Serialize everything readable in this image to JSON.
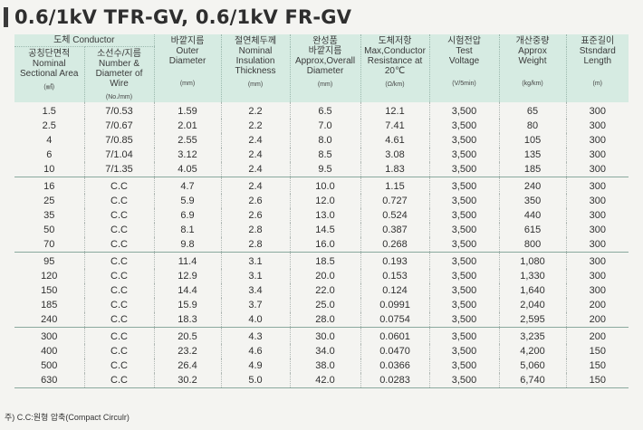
{
  "title": "0.6/1kV TFR-GV, 0.6/1kV FR-GV",
  "header": {
    "conductor_group": "도체 Conductor",
    "col1": {
      "lines": [
        "공칭단면적",
        "Nominal",
        "Sectional Area"
      ],
      "unit": "(㎟)"
    },
    "col2": {
      "lines": [
        "소선수/지름",
        "Number &",
        "Diameter of Wire"
      ],
      "unit": "(No./mm)"
    },
    "col3": {
      "lines": [
        "바깥지름",
        "Outer",
        "Diameter"
      ],
      "unit": "(mm)"
    },
    "col4": {
      "lines": [
        "절연체두께",
        "Nominal",
        "Insulation",
        "Thickness"
      ],
      "unit": "(mm)"
    },
    "col5": {
      "lines": [
        "완성품",
        "바깥지름",
        "Approx,Overall",
        "Diameter"
      ],
      "unit": "(mm)"
    },
    "col6": {
      "lines": [
        "도체저항",
        "Max,Conductor",
        "Resistance at",
        "20℃"
      ],
      "unit": "(Ω/km)"
    },
    "col7": {
      "lines": [
        "시험전압",
        "Test",
        "Voltage"
      ],
      "unit": "(V/5min)"
    },
    "col8": {
      "lines": [
        "개산중량",
        "Approx",
        "Weight"
      ],
      "unit": "(kg/km)"
    },
    "col9": {
      "lines": [
        "표준길이",
        "Stsndard",
        "Length"
      ],
      "unit": "(m)"
    }
  },
  "rows": [
    [
      "1.5",
      "7/0.53",
      "1.59",
      "2.2",
      "6.5",
      "12.1",
      "3,500",
      "65",
      "300"
    ],
    [
      "2.5",
      "7/0.67",
      "2.01",
      "2.2",
      "7.0",
      "7.41",
      "3,500",
      "80",
      "300"
    ],
    [
      "4",
      "7/0.85",
      "2.55",
      "2.4",
      "8.0",
      "4.61",
      "3,500",
      "105",
      "300"
    ],
    [
      "6",
      "7/1.04",
      "3.12",
      "2.4",
      "8.5",
      "3.08",
      "3,500",
      "135",
      "300"
    ],
    [
      "10",
      "7/1.35",
      "4.05",
      "2.4",
      "9.5",
      "1.83",
      "3,500",
      "185",
      "300"
    ],
    [
      "16",
      "C.C",
      "4.7",
      "2.4",
      "10.0",
      "1.15",
      "3,500",
      "240",
      "300"
    ],
    [
      "25",
      "C.C",
      "5.9",
      "2.6",
      "12.0",
      "0.727",
      "3,500",
      "350",
      "300"
    ],
    [
      "35",
      "C.C",
      "6.9",
      "2.6",
      "13.0",
      "0.524",
      "3,500",
      "440",
      "300"
    ],
    [
      "50",
      "C.C",
      "8.1",
      "2.8",
      "14.5",
      "0.387",
      "3,500",
      "615",
      "300"
    ],
    [
      "70",
      "C.C",
      "9.8",
      "2.8",
      "16.0",
      "0.268",
      "3,500",
      "800",
      "300"
    ],
    [
      "95",
      "C.C",
      "11.4",
      "3.1",
      "18.5",
      "0.193",
      "3,500",
      "1,080",
      "300"
    ],
    [
      "120",
      "C.C",
      "12.9",
      "3.1",
      "20.0",
      "0.153",
      "3,500",
      "1,330",
      "300"
    ],
    [
      "150",
      "C.C",
      "14.4",
      "3.4",
      "22.0",
      "0.124",
      "3,500",
      "1,640",
      "300"
    ],
    [
      "185",
      "C.C",
      "15.9",
      "3.7",
      "25.0",
      "0.0991",
      "3,500",
      "2,040",
      "200"
    ],
    [
      "240",
      "C.C",
      "18.3",
      "4.0",
      "28.0",
      "0.0754",
      "3,500",
      "2,595",
      "200"
    ],
    [
      "300",
      "C.C",
      "20.5",
      "4.3",
      "30.0",
      "0.0601",
      "3,500",
      "3,235",
      "200"
    ],
    [
      "400",
      "C.C",
      "23.2",
      "4.6",
      "34.0",
      "0.0470",
      "3,500",
      "4,200",
      "150"
    ],
    [
      "500",
      "C.C",
      "26.4",
      "4.9",
      "38.0",
      "0.0366",
      "3,500",
      "5,060",
      "150"
    ],
    [
      "630",
      "C.C",
      "30.2",
      "5.0",
      "42.0",
      "0.0283",
      "3,500",
      "6,740",
      "150"
    ]
  ],
  "footnote": "주) C.C:원형 압축(Compact Circulr)"
}
